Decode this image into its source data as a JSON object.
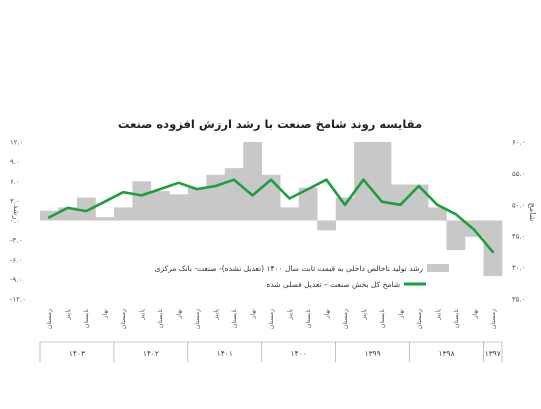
{
  "chart_data": {
    "type": "bar",
    "title": "مقایسه روند شامخ صنعت با رشد ارزش افزوده صنعت",
    "ylabel_left": "رشد",
    "ylabel_right": "شامخ",
    "left_axis": {
      "ylim": [
        -12,
        12
      ],
      "ticks": [
        "-۱۲.۰",
        "-۹.۰",
        "-۶.۰",
        "-۳.۰",
        "۰.۰",
        "۳.۰",
        "۶.۰",
        "۹.۰",
        "۱۲.۰"
      ],
      "tick_values": [
        -12,
        -9,
        -6,
        -3,
        0,
        3,
        6,
        9,
        12
      ]
    },
    "right_axis": {
      "ylim": [
        35,
        60
      ],
      "ticks": [
        "۳۵.۰",
        "۴۰.۰",
        "۴۵.۰",
        "۵۰.۰",
        "۵۵.۰",
        "۶۰.۰"
      ],
      "tick_values": [
        35,
        40,
        45,
        50,
        55,
        60
      ]
    },
    "categories": [
      "زمستان",
      "بهار",
      "تابستان",
      "پاییز",
      "زمستان",
      "بهار",
      "تابستان",
      "پاییز",
      "زمستان",
      "بهار",
      "تابستان",
      "پاییز",
      "زمستان",
      "بهار",
      "تابستان",
      "پاییز",
      "زمستان",
      "بهار",
      "تابستان",
      "پاییز",
      "زمستان",
      "بهار",
      "تابستان",
      "پاییز",
      "زمستان"
    ],
    "year_groups": [
      {
        "label": "۱۳۹۷",
        "count": 1
      },
      {
        "label": "۱۳۹۸",
        "count": 4
      },
      {
        "label": "۱۳۹۹",
        "count": 4
      },
      {
        "label": "۱۴۰۰",
        "count": 4
      },
      {
        "label": "۱۴۰۱",
        "count": 4
      },
      {
        "label": "۱۴۰۲",
        "count": 4
      },
      {
        "label": "۱۴۰۳",
        "count": 4
      }
    ],
    "series": [
      {
        "name": "رشد تولید ناخالص داخلی به قیمت ثابت سال ۱۴۰۰ (تعدیل نشده)- صنعت- بانک مرکزی",
        "type": "bar",
        "axis": "left",
        "color": "#c8c8c8",
        "values": [
          -8.5,
          -2.5,
          -4.5,
          2.0,
          5.5,
          5.5,
          12.0,
          12.0,
          3.5,
          -1.5,
          5.0,
          2.0,
          7.0,
          12.0,
          8.0,
          7.0,
          5.0,
          4.0,
          4.5,
          6.0,
          2.0,
          0.5,
          3.5,
          2.0,
          1.5
        ]
      },
      {
        "name": "شامخ کل بخش صنعت – تعدیل فصلی شده",
        "type": "line",
        "axis": "right",
        "color": "#1f9e3e",
        "values": [
          42.5,
          46.0,
          48.5,
          50.0,
          53.0,
          50.0,
          50.5,
          54.0,
          50.0,
          54.0,
          52.5,
          51.0,
          54.0,
          51.5,
          54.0,
          53.0,
          52.5,
          53.5,
          52.5,
          51.5,
          52.0,
          50.5,
          49.0,
          49.5,
          48.0
        ]
      }
    ],
    "legend": "bottom-inside"
  }
}
